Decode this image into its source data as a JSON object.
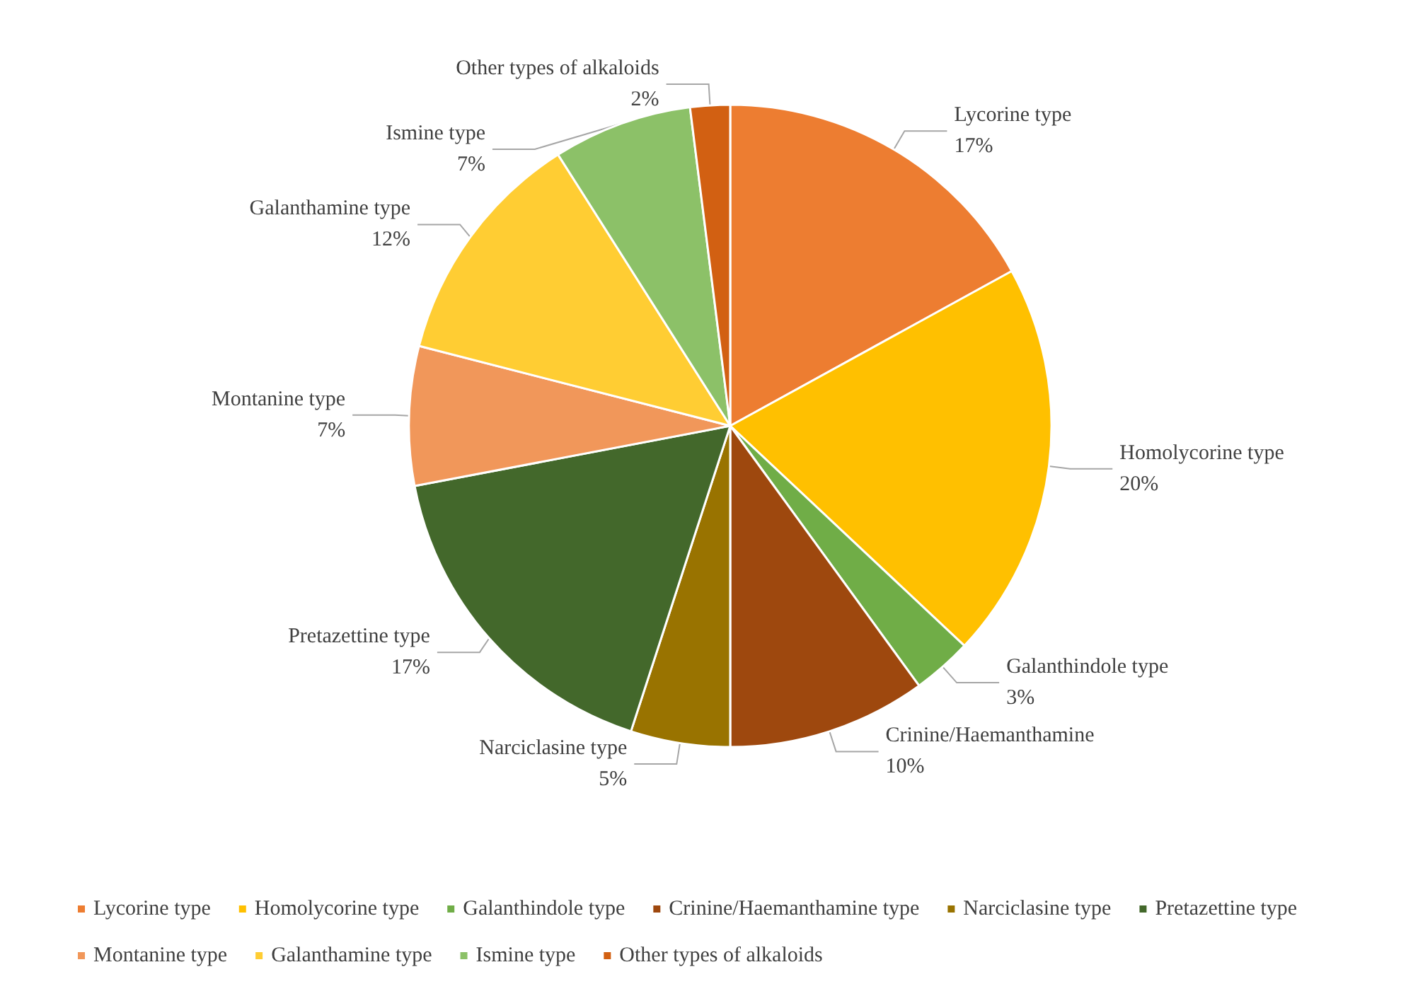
{
  "chart_data": {
    "type": "pie",
    "categories": [
      "Lycorine type",
      "Homolycorine type",
      "Galanthindole type",
      "Crinine/Haemanthamine type",
      "Narciclasine type",
      "Pretazettine type",
      "Montanine type",
      "Galanthamine type",
      "Ismine type",
      "Other types of alkaloids"
    ],
    "values": [
      17,
      20,
      3,
      10,
      5,
      17,
      7,
      12,
      7,
      2
    ],
    "colors": [
      "#ed7d31",
      "#ffc000",
      "#70ad47",
      "#9e480e",
      "#997300",
      "#43682b",
      "#f1975a",
      "#ffcd33",
      "#8cc168",
      "#d26012"
    ],
    "value_labels": [
      "Lycorine type\n17%",
      "Homolycorine type\n20%",
      "Galanthindole type\n3%",
      "Crinine/Haemanthamine\n10%",
      "Narciclasine type\n5%",
      "Pretazettine type\n17%",
      "Montanine type\n7%",
      "Galanthamine type\n12%",
      "Ismine type\n7%",
      "Other types of alkaloids\n2%"
    ],
    "legend": "bottom"
  }
}
